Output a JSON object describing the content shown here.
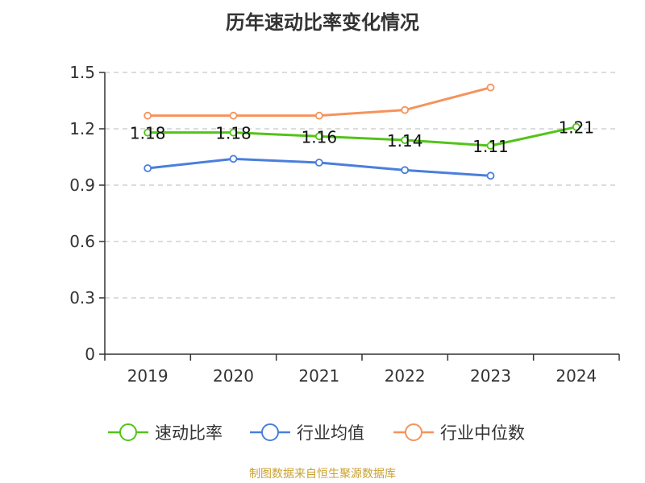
{
  "chart_data": {
    "type": "line",
    "title": "历年速动比率变化情况",
    "categories": [
      "2019",
      "2020",
      "2021",
      "2022",
      "2023",
      "2024"
    ],
    "ylim": [
      0,
      1.5
    ],
    "yticks": [
      "0",
      "0.3",
      "0.6",
      "0.9",
      "1.2",
      "1.5"
    ],
    "grid": true,
    "legend_position": "bottom",
    "series": [
      {
        "name": "速动比率",
        "color": "#52c41a",
        "values": [
          1.18,
          1.18,
          1.16,
          1.14,
          1.11,
          1.21
        ],
        "labels": [
          "1.18",
          "1.18",
          "1.16",
          "1.14",
          "1.11",
          "1.21"
        ]
      },
      {
        "name": "行业均值",
        "color": "#4a7fdc",
        "values": [
          0.99,
          1.04,
          1.02,
          0.98,
          0.95,
          null
        ]
      },
      {
        "name": "行业中位数",
        "color": "#f5935c",
        "values": [
          1.27,
          1.27,
          1.27,
          1.3,
          1.42,
          null
        ]
      }
    ]
  },
  "source": "制图数据来自恒生聚源数据库"
}
